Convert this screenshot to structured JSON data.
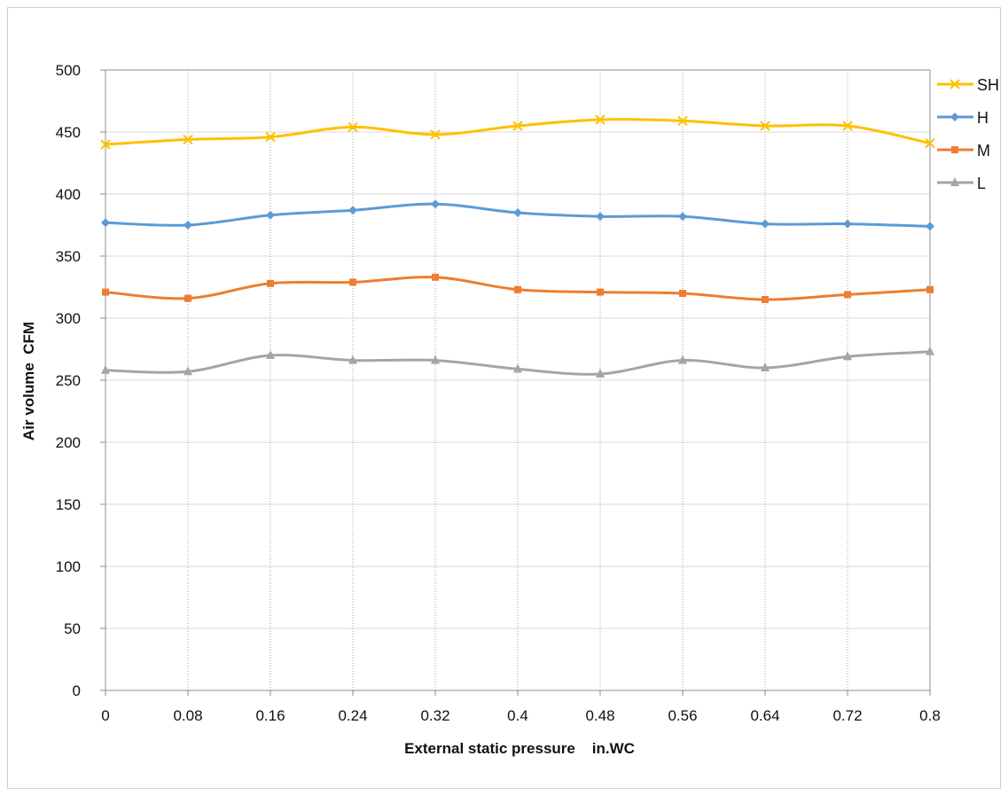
{
  "chart_data": {
    "type": "line",
    "title": "",
    "xlabel": "External static pressure    in.WC",
    "ylabel": "Air volume  CFM",
    "x": [
      0,
      0.08,
      0.16,
      0.24,
      0.32,
      0.4,
      0.48,
      0.56,
      0.64,
      0.72,
      0.8
    ],
    "x_tick_labels": [
      "0",
      "0.08",
      "0.16",
      "0.24",
      "0.32",
      "0.4",
      "0.48",
      "0.56",
      "0.64",
      "0.72",
      "0.8"
    ],
    "ylim": [
      0,
      500
    ],
    "y_ticks": [
      0,
      50,
      100,
      150,
      200,
      250,
      300,
      350,
      400,
      450,
      500
    ],
    "grid": {
      "horizontal": true,
      "vertical": "dotted"
    },
    "legend_position": "right",
    "series": [
      {
        "name": "SH",
        "color": "#FFC000",
        "marker": "x",
        "values": [
          440,
          444,
          446,
          454,
          448,
          455,
          460,
          459,
          455,
          455,
          441
        ]
      },
      {
        "name": "H",
        "color": "#5B9BD5",
        "marker": "diamond",
        "values": [
          377,
          375,
          383,
          387,
          392,
          385,
          382,
          382,
          376,
          376,
          374
        ]
      },
      {
        "name": "M",
        "color": "#ED7D31",
        "marker": "square",
        "values": [
          321,
          316,
          328,
          329,
          333,
          323,
          321,
          320,
          315,
          319,
          323
        ]
      },
      {
        "name": "L",
        "color": "#A5A5A5",
        "marker": "triangle",
        "values": [
          258,
          257,
          270,
          266,
          266,
          259,
          255,
          266,
          260,
          269,
          273
        ]
      }
    ]
  }
}
